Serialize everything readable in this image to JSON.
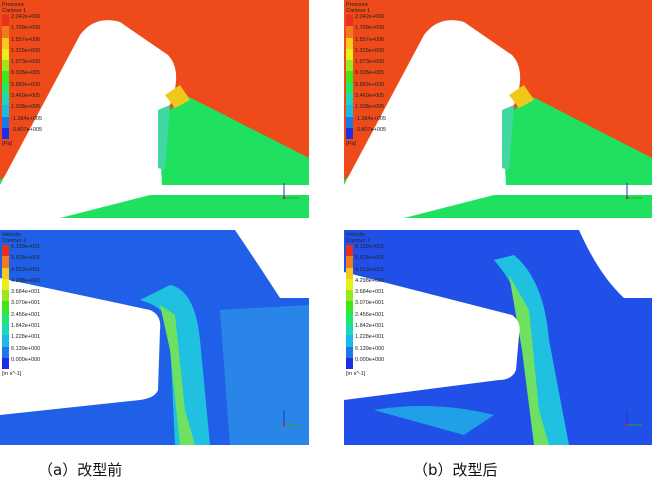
{
  "panels": [
    {
      "id": "a-pressure",
      "legend": {
        "title": "Pressure",
        "subtitle": "Contour 1",
        "unit": "[Pa]",
        "ticks": [
          "2.042e+006",
          "1.799e+006",
          "1.557e+006",
          "1.315e+006",
          "1.073e+006",
          "8.305e+005",
          "5.882e+005",
          "3.460e+005",
          "1.038e+005",
          "-1.384e+005",
          "-3.807e+005"
        ]
      }
    },
    {
      "id": "b-pressure",
      "legend": {
        "title": "Pressure",
        "subtitle": "Contour 1",
        "unit": "[Pa]",
        "ticks": [
          "2.042e+006",
          "1.799e+006",
          "1.557e+006",
          "1.315e+006",
          "1.073e+006",
          "8.305e+005",
          "5.882e+005",
          "3.460e+005",
          "1.038e+005",
          "-1.384e+005",
          "-3.807e+005"
        ]
      }
    },
    {
      "id": "a-velocity",
      "legend": {
        "title": "Velocity",
        "subtitle": "Contour 2",
        "unit": "[m s^-1]",
        "ticks": [
          "6.139e+001",
          "5.526e+001",
          "4.912e+001",
          "4.298e+001",
          "3.684e+001",
          "3.070e+001",
          "2.456e+001",
          "1.842e+001",
          "1.228e+001",
          "6.139e+000",
          "0.000e+000"
        ]
      }
    },
    {
      "id": "b-velocity",
      "legend": {
        "title": "Velocity",
        "subtitle": "Contour 2",
        "unit": "[m s^-1]",
        "ticks": [
          "6.139e+001",
          "5.526e+001",
          "4.912e+001",
          "4.298e+001",
          "3.684e+001",
          "3.070e+001",
          "2.456e+001",
          "1.842e+001",
          "1.228e+001",
          "6.139e+000",
          "0.000e+000"
        ]
      }
    }
  ],
  "colormap": [
    "#e8301c",
    "#f07a1c",
    "#f8c81c",
    "#e8f01c",
    "#9ae81c",
    "#3ce81c",
    "#1ce86a",
    "#1cd8b8",
    "#1cb8e8",
    "#1c78e8",
    "#1c30e8"
  ],
  "captions": {
    "a": "（a）改型前",
    "b": "（b）改型后"
  }
}
